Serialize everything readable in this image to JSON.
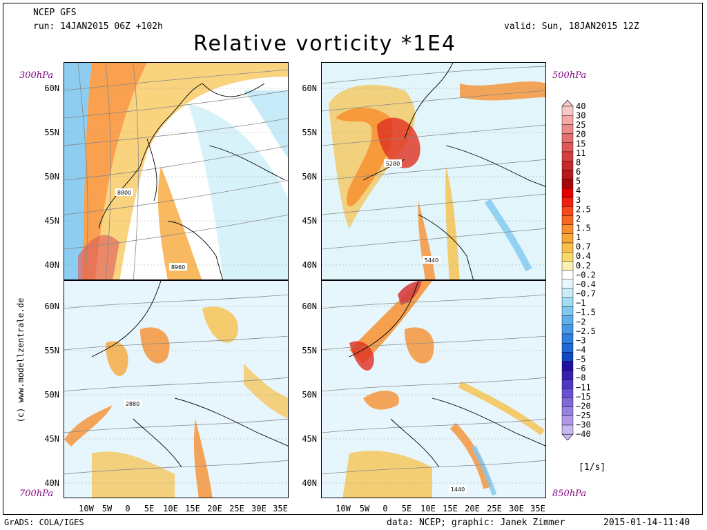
{
  "header": {
    "model": "NCEP GFS",
    "run": "run: 14JAN2015 06Z +102h",
    "valid": "valid: Sun, 18JAN2015 12Z",
    "title": "Relative vorticity *1E4"
  },
  "side_text": "(c) www.modellzentrale.de",
  "panels": [
    {
      "id": "p300",
      "level": "300hPa",
      "contour_label": "8800"
    },
    {
      "id": "p500",
      "level": "500hPa",
      "contour_label": "5280"
    },
    {
      "id": "p700",
      "level": "700hPa",
      "contour_label": "2880"
    },
    {
      "id": "p850",
      "level": "850hPa",
      "contour_label": "1440"
    }
  ],
  "extra_labels": {
    "p300_2": "8960",
    "p500_2": "5440"
  },
  "lat_labels": [
    "60N",
    "55N",
    "50N",
    "45N",
    "40N"
  ],
  "lon_labels": [
    "10W",
    "5W",
    "0",
    "5E",
    "10E",
    "15E",
    "20E",
    "25E",
    "30E",
    "35E"
  ],
  "colorbar": {
    "unit": "[1/s]",
    "labels": [
      "40",
      "30",
      "25",
      "20",
      "15",
      "11",
      "8",
      "6",
      "5",
      "4",
      "3",
      "2.5",
      "2",
      "1.5",
      "1",
      "0.7",
      "0.4",
      "0.2",
      "−0.2",
      "−0.4",
      "−0.7",
      "−1",
      "−1.5",
      "−2",
      "−2.5",
      "−3",
      "−4",
      "−5",
      "−6",
      "−8",
      "−11",
      "−15",
      "−20",
      "−25",
      "−30",
      "−40"
    ],
    "colors": [
      "#f8c8c8",
      "#f4a8a8",
      "#ee8c8c",
      "#e67070",
      "#de5858",
      "#d44040",
      "#c82828",
      "#b81818",
      "#a80808",
      "#e00000",
      "#f02010",
      "#f84818",
      "#f86820",
      "#f89030",
      "#f8a838",
      "#f8c048",
      "#f8d868",
      "#fcf0b0",
      "#ffffff",
      "#e8f8fc",
      "#c8ecf8",
      "#a0dcf4",
      "#80c8f0",
      "#60b0ec",
      "#4898e8",
      "#3080e0",
      "#2068d8",
      "#1048c0",
      "#2010a0",
      "#3820b0",
      "#5038c0",
      "#6850d0",
      "#8068d8",
      "#9880e0",
      "#b098e8",
      "#c8b8f0"
    ]
  },
  "footer": {
    "left": "GrADS: COLA/IGES",
    "mid": "data: NCEP; graphic: Janek Zimmer",
    "right": "2015-01-14-11:40"
  }
}
